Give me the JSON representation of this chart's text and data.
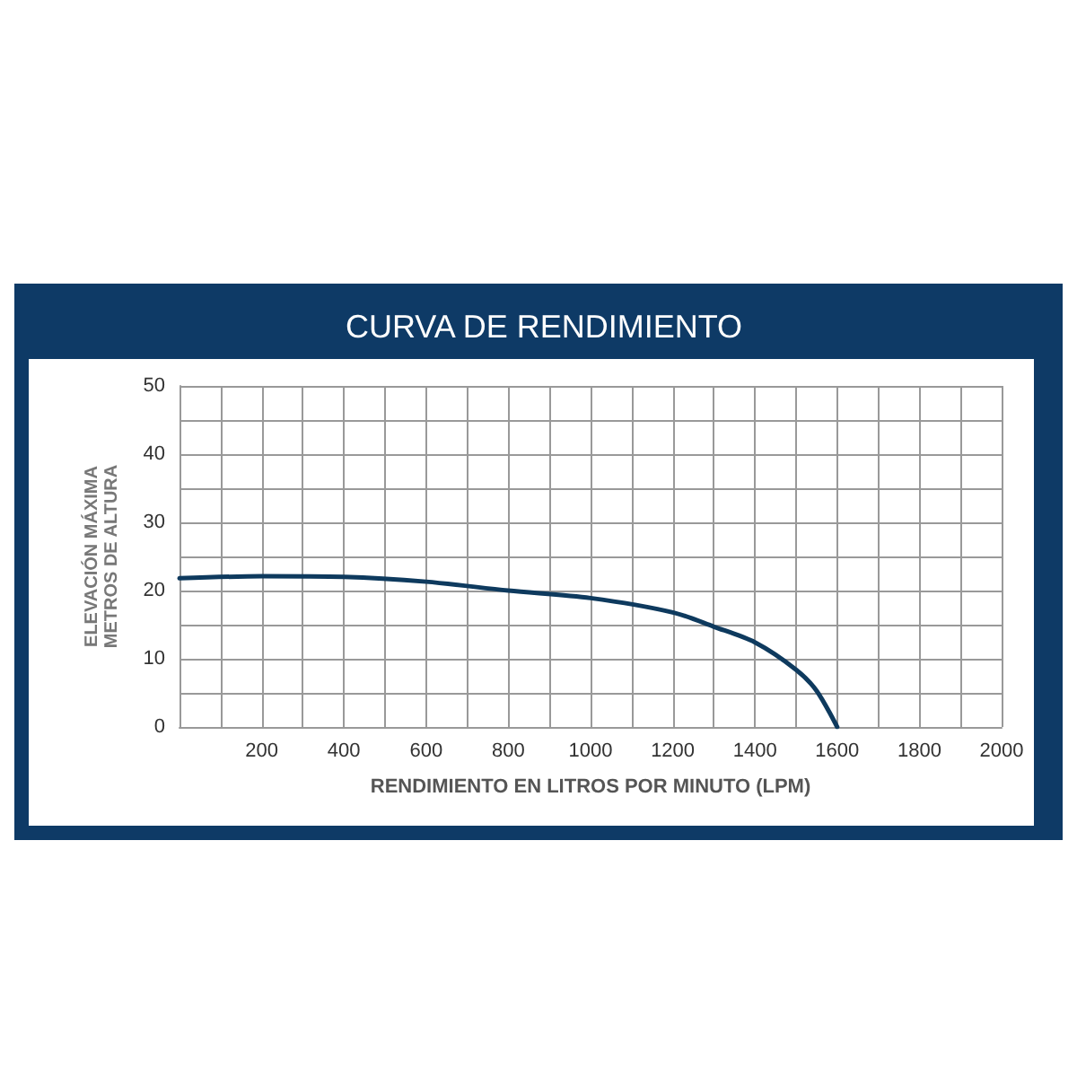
{
  "chart_data": {
    "type": "line",
    "title": "CURVA DE RENDIMIENTO",
    "xlabel": "RENDIMIENTO EN LITROS POR MINUTO (LPM)",
    "ylabel": "ELEVACIÓN MÁXIMA\nMETROS DE ALTURA",
    "series": [
      {
        "color": "#0e3a5e",
        "x": [
          0,
          200,
          400,
          600,
          800,
          1000,
          1200,
          1300,
          1400,
          1500,
          1550,
          1600
        ],
        "values": [
          21.8,
          22.1,
          22.0,
          21.3,
          20.0,
          18.9,
          16.8,
          14.7,
          12.4,
          8.4,
          5.3,
          0
        ]
      }
    ],
    "xlim": [
      0,
      2000
    ],
    "xticks": [
      {
        "value": 100,
        "label": null
      },
      200,
      {
        "value": 300,
        "label": null
      },
      400,
      {
        "value": 500,
        "label": null
      },
      600,
      {
        "value": 700,
        "label": null
      },
      800,
      {
        "value": 900,
        "label": null
      },
      1000,
      {
        "value": 1100,
        "label": null
      },
      1200,
      {
        "value": 1300,
        "label": null
      },
      1400,
      {
        "value": 1500,
        "label": null
      },
      1600,
      {
        "value": 1700,
        "label": null
      },
      1800,
      {
        "value": 1900,
        "label": null
      },
      2000
    ],
    "ylim": [
      0,
      50
    ],
    "yticks": [
      0,
      {
        "value": 5,
        "label": null
      },
      10,
      {
        "value": 15,
        "label": null
      },
      20,
      {
        "value": 25,
        "label": null
      },
      30,
      {
        "value": 35,
        "label": null
      },
      40,
      {
        "value": 45,
        "label": null
      },
      50
    ],
    "grid": true,
    "marker": "none",
    "line_style": "solid"
  }
}
